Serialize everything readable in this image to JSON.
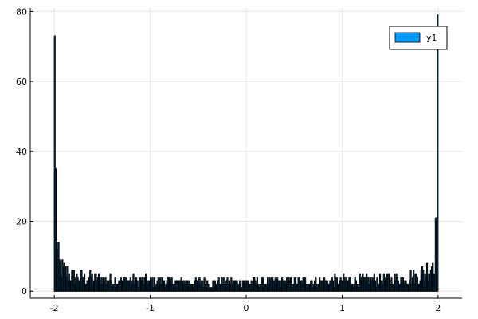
{
  "chart_data": {
    "type": "bar",
    "title": "",
    "xlabel": "",
    "ylabel": "",
    "xlim": [
      -2.25,
      2.25
    ],
    "ylim": [
      -2,
      81
    ],
    "x_ticks": [
      -2,
      -1,
      0,
      1,
      2
    ],
    "x_tick_labels": [
      "-2",
      "-1",
      "0",
      "1",
      "2"
    ],
    "y_ticks": [
      0,
      20,
      40,
      60,
      80
    ],
    "y_tick_labels": [
      "0",
      "20",
      "40",
      "60",
      "80"
    ],
    "grid": true,
    "legend_position": "top-right",
    "bin_range": [
      -2,
      2
    ],
    "bin_count": 400,
    "edge_peaks": {
      "left": 73,
      "right": 79
    },
    "series": [
      {
        "name": "y1",
        "color": "#009af9",
        "edge_color": "#000000",
        "control_x": [
          -2.0,
          -1.99,
          -1.98,
          -1.97,
          -1.96,
          -1.95,
          -1.94,
          -1.92,
          -1.9,
          -1.87,
          -1.84,
          -1.8,
          -1.75,
          -1.7,
          -1.6,
          -1.5,
          -1.3,
          -1.0,
          -0.7,
          -0.4,
          0.0,
          0.4,
          0.7,
          1.0,
          1.3,
          1.5,
          1.6,
          1.7,
          1.75,
          1.8,
          1.84,
          1.87,
          1.9,
          1.92,
          1.94,
          1.95,
          1.96,
          1.97,
          1.98,
          1.99,
          2.0
        ],
        "control_y": [
          73,
          40,
          28,
          13,
          11,
          9.5,
          8,
          7,
          6.5,
          6,
          5.5,
          5,
          4.8,
          4.5,
          4.2,
          4,
          3.6,
          3.3,
          3.1,
          3,
          3,
          3,
          3.1,
          3.3,
          3.6,
          4,
          4.2,
          4.5,
          4.8,
          5,
          5.5,
          6,
          7,
          8,
          9,
          10,
          12,
          15,
          18,
          25,
          79
        ]
      }
    ]
  }
}
